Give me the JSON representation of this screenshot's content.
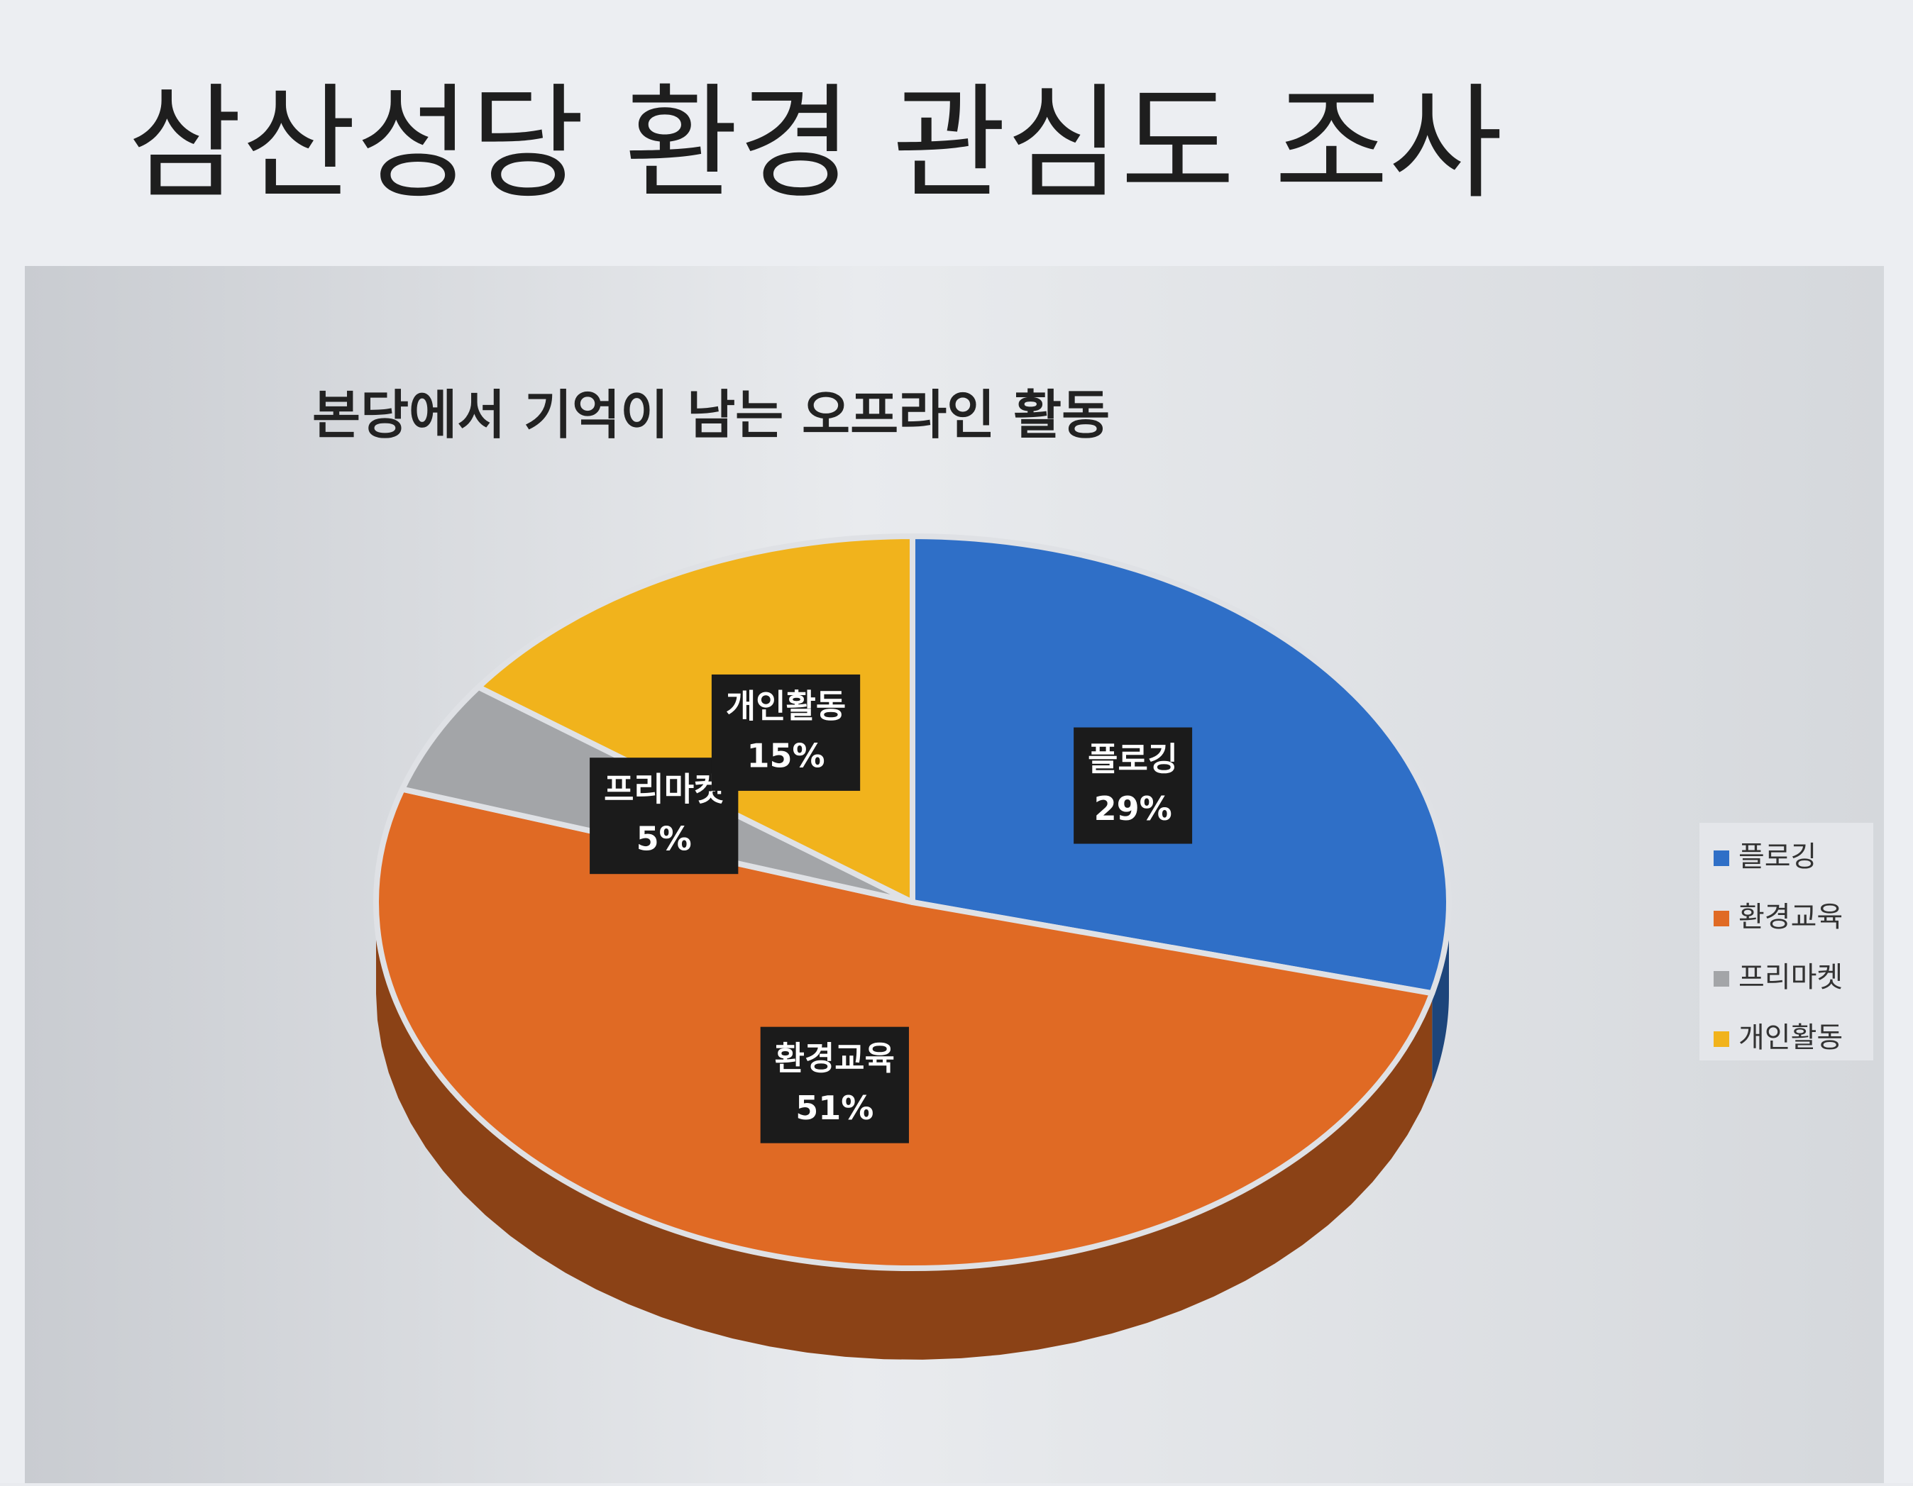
{
  "slide_title": "삼산성당 환경 관심도 조사",
  "chart_data": {
    "type": "pie",
    "title": "본당에서 기억이 남는 오프라인 활동",
    "categories": [
      "플로깅",
      "환경교육",
      "프리마켓",
      "개인활동"
    ],
    "values": [
      29,
      51,
      5,
      15
    ],
    "value_labels": [
      "29%",
      "51%",
      "5%",
      "15%"
    ],
    "colors": [
      "#2f6fc7",
      "#e06a24",
      "#a3a5a8",
      "#f1b31c"
    ],
    "legend": "right"
  }
}
